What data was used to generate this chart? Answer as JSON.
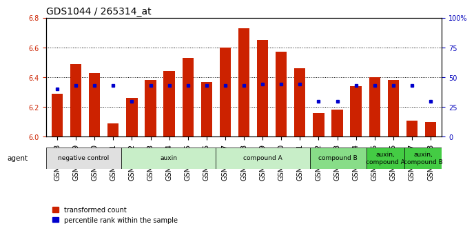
{
  "title": "GDS1044 / 265314_at",
  "samples": [
    "GSM25858",
    "GSM25859",
    "GSM25860",
    "GSM25861",
    "GSM25862",
    "GSM25863",
    "GSM25864",
    "GSM25865",
    "GSM25866",
    "GSM25867",
    "GSM25868",
    "GSM25869",
    "GSM25870",
    "GSM25871",
    "GSM25872",
    "GSM25873",
    "GSM25874",
    "GSM25875",
    "GSM25876",
    "GSM25877",
    "GSM25878"
  ],
  "bar_heights": [
    6.29,
    6.49,
    6.43,
    6.09,
    6.26,
    6.38,
    6.44,
    6.53,
    6.37,
    6.6,
    6.73,
    6.65,
    6.57,
    6.46,
    6.16,
    6.18,
    6.34,
    6.4,
    6.38,
    6.11,
    6.1
  ],
  "percentile_values": [
    40,
    43,
    43,
    43,
    30,
    43,
    43,
    43,
    43,
    43,
    43,
    44,
    44,
    44,
    30,
    30,
    43,
    43,
    43,
    43,
    30
  ],
  "ylim": [
    6.0,
    6.8
  ],
  "y2lim": [
    0,
    100
  ],
  "bar_color": "#cc2200",
  "dot_color": "#0000cc",
  "bar_width": 0.6,
  "agent_groups": [
    {
      "label": "negative control",
      "start": 0,
      "end": 4,
      "color": "#e0e0e0"
    },
    {
      "label": "auxin",
      "start": 4,
      "end": 9,
      "color": "#c8eec8"
    },
    {
      "label": "compound A",
      "start": 9,
      "end": 14,
      "color": "#c8eec8"
    },
    {
      "label": "compound B",
      "start": 14,
      "end": 17,
      "color": "#88dd88"
    },
    {
      "label": "auxin,\ncompound A",
      "start": 17,
      "end": 19,
      "color": "#44cc44"
    },
    {
      "label": "auxin,\ncompound B",
      "start": 19,
      "end": 21,
      "color": "#44cc44"
    }
  ],
  "legend_items": [
    {
      "label": "transformed count",
      "color": "#cc2200"
    },
    {
      "label": "percentile rank within the sample",
      "color": "#0000cc"
    }
  ],
  "title_fontsize": 10,
  "tick_fontsize": 7,
  "axis_label_color_left": "#cc2200",
  "axis_label_color_right": "#0000bb"
}
